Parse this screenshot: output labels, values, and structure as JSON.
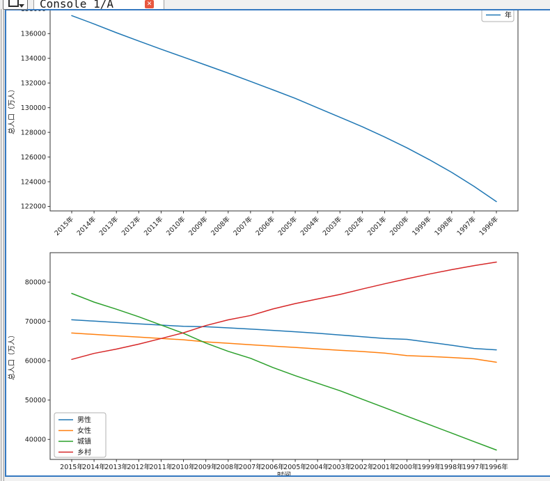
{
  "theme": {
    "focus_border": "#3478c0",
    "close_button_bg": "#e8573f",
    "tabbar_bg": "#f0f0f0",
    "axis_color": "#333333",
    "text_color": "#1a1a1a"
  },
  "tab_bar": {
    "tab_label": "Console 1/A",
    "close_glyph": "✕"
  },
  "chart_data": [
    {
      "type": "line",
      "title": "",
      "xlabel": "",
      "ylabel": "总人口（万人）",
      "x_tick_labels": [
        "2015年",
        "2014年",
        "2013年",
        "2012年",
        "2011年",
        "2010年",
        "2009年",
        "2008年",
        "2007年",
        "2006年",
        "2005年",
        "2004年",
        "2003年",
        "2002年",
        "2001年",
        "2000年",
        "1999年",
        "1998年",
        "1997年",
        "1996年"
      ],
      "x_tick_rotation": 45,
      "y_ticks": [
        122000,
        124000,
        126000,
        128000,
        130000,
        132000,
        134000,
        136000,
        138000
      ],
      "ylim": [
        121635,
        138216
      ],
      "grid": false,
      "legend_position": "upper right",
      "series": [
        {
          "name": "年",
          "color": "#1f77b4",
          "values": [
            137462,
            136782,
            136072,
            135404,
            134735,
            134091,
            133450,
            132802,
            132129,
            131448,
            130756,
            129988,
            129227,
            128453,
            127627,
            126743,
            125786,
            124761,
            123626,
            122389
          ]
        }
      ]
    },
    {
      "type": "line",
      "title": "",
      "xlabel": "时间",
      "ylabel": "总人口（万人）",
      "x_tick_labels": [
        "2015年",
        "2014年",
        "2013年",
        "2012年",
        "2011年",
        "2010年",
        "2009年",
        "2008年",
        "2007年",
        "2006年",
        "2005年",
        "2004年",
        "2003年",
        "2002年",
        "2001年",
        "2000年",
        "1999年",
        "1998年",
        "1997年",
        "1996年"
      ],
      "x_tick_rotation": 0,
      "y_ticks": [
        40000,
        50000,
        60000,
        70000,
        80000
      ],
      "ylim": [
        34915,
        87474
      ],
      "grid": false,
      "legend_position": "lower left",
      "series": [
        {
          "name": "男性",
          "color": "#1f77b4",
          "values": [
            70414,
            70079,
            69728,
            69395,
            69068,
            68748,
            68647,
            68357,
            68048,
            67728,
            67375,
            66976,
            66556,
            66115,
            65672,
            65437,
            64692,
            63940,
            63131,
            62765
          ]
        },
        {
          "name": "女性",
          "color": "#ff7f0e",
          "values": [
            67048,
            66703,
            66344,
            66009,
            65667,
            65343,
            64803,
            64445,
            64081,
            63720,
            63381,
            63012,
            62671,
            62338,
            61955,
            61306,
            61094,
            60821,
            60495,
            59624
          ]
        },
        {
          "name": "城镇",
          "color": "#2ca02c",
          "values": [
            77116,
            74916,
            73111,
            71182,
            69079,
            66978,
            64512,
            62403,
            60633,
            58288,
            56212,
            54283,
            52376,
            50212,
            48064,
            45906,
            43748,
            41608,
            39449,
            37304
          ]
        },
        {
          "name": "乡村",
          "color": "#d62728",
          "values": [
            60346,
            61866,
            62961,
            64222,
            65656,
            67113,
            68938,
            70399,
            71496,
            73160,
            74544,
            75705,
            76851,
            78241,
            79563,
            80837,
            82038,
            83153,
            84177,
            85085
          ]
        }
      ]
    }
  ]
}
